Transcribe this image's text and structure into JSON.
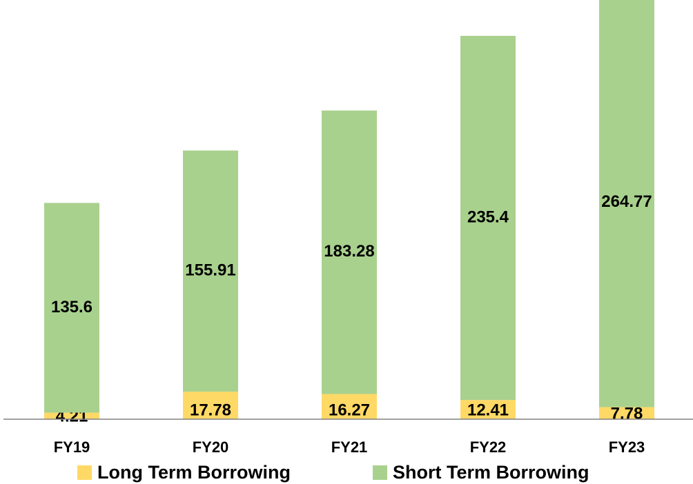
{
  "chart_data": {
    "type": "stacked_bar",
    "categories": [
      "FY19",
      "FY20",
      "FY21",
      "FY22",
      "FY23"
    ],
    "series": [
      {
        "name": "Long Term Borrowing",
        "color": "#ffd966",
        "values": [
          4.21,
          17.78,
          16.27,
          12.41,
          7.78
        ]
      },
      {
        "name": "Short Term Borrowing",
        "color": "#a9d18e",
        "values": [
          135.6,
          155.91,
          183.28,
          235.4,
          264.77
        ]
      }
    ],
    "ylim": [
      0,
      271
    ],
    "legend": "bottom"
  }
}
